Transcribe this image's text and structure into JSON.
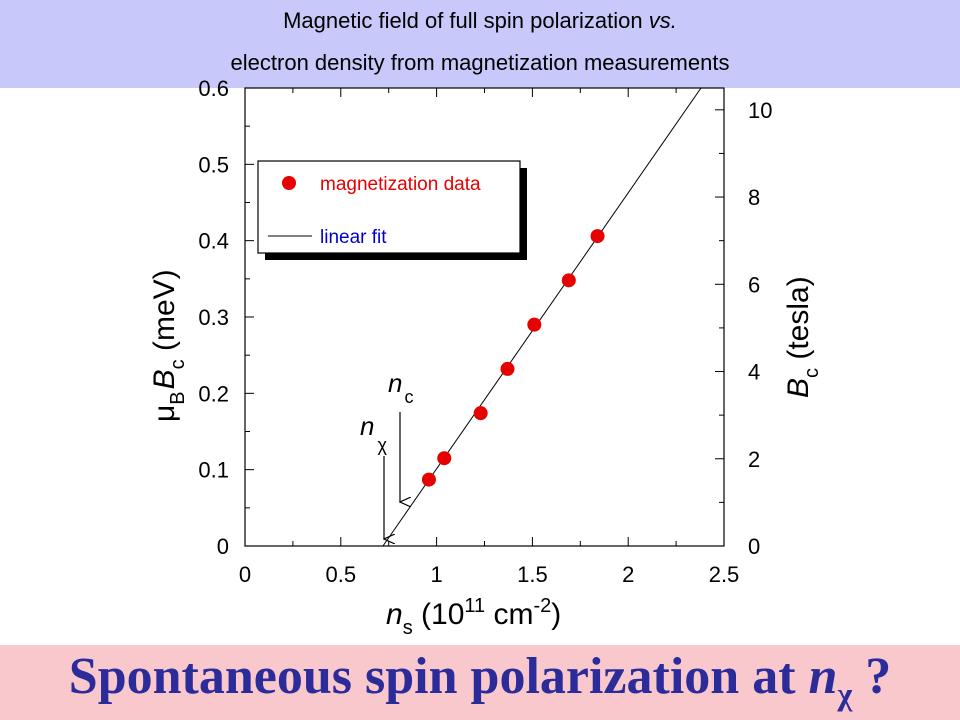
{
  "header": {
    "line1_text": "Magnetic field of full spin polarization",
    "line1_italic": "vs.",
    "line2": "electron density from magnetization measurements"
  },
  "footer": {
    "title_text": "Spontaneous spin polarization at ",
    "title_var": "n",
    "title_sub": "χ",
    "title_end": " ?"
  },
  "colors": {
    "header_bg": "#c8c8fa",
    "footer_bg": "#f8c8cc",
    "title_color": "#2b2b9a",
    "marker": "#e60000",
    "legend_text": "#e60000",
    "legend_fit_text": "#0000cc"
  },
  "chart_data": {
    "type": "scatter",
    "x": [
      0.96,
      1.04,
      1.23,
      1.37,
      1.51,
      1.69,
      1.84
    ],
    "y": [
      0.087,
      0.115,
      0.174,
      0.232,
      0.29,
      0.348,
      0.406
    ],
    "xlim": [
      0,
      2.5
    ],
    "ylim": [
      0,
      0.6
    ],
    "y2lim": [
      0,
      10.5
    ],
    "xticks": [
      "0",
      "0.5",
      "1",
      "1.5",
      "2",
      "2.5"
    ],
    "yticks": [
      "0",
      "0.1",
      "0.2",
      "0.3",
      "0.4",
      "0.5",
      "0.6"
    ],
    "y2ticks": [
      "0",
      "2",
      "4",
      "6",
      "8",
      "10"
    ],
    "xlabel": {
      "var": "n",
      "sub": "s",
      "text": " (10",
      "sup": "11",
      "text2": " cm",
      "sup2": "-2",
      "text3": ")"
    },
    "ylabel": {
      "mu": "μ",
      "sub1": "B",
      "var": "B",
      "sub2": "c",
      "text": " (meV)"
    },
    "y2label": {
      "var": "B",
      "sub": "c",
      "text": " (tesla)"
    },
    "fit": {
      "x": [
        0.72,
        2.38
      ],
      "y": [
        0,
        0.6
      ]
    },
    "legend": {
      "position": "top-left",
      "items": [
        "magnetization data",
        "linear fit"
      ]
    },
    "annotations": [
      {
        "var": "n",
        "sub": "c",
        "x": 0.81,
        "y": 0.055
      },
      {
        "var": "n",
        "sub": "χ",
        "x": 0.72,
        "y": 0.015
      }
    ]
  }
}
